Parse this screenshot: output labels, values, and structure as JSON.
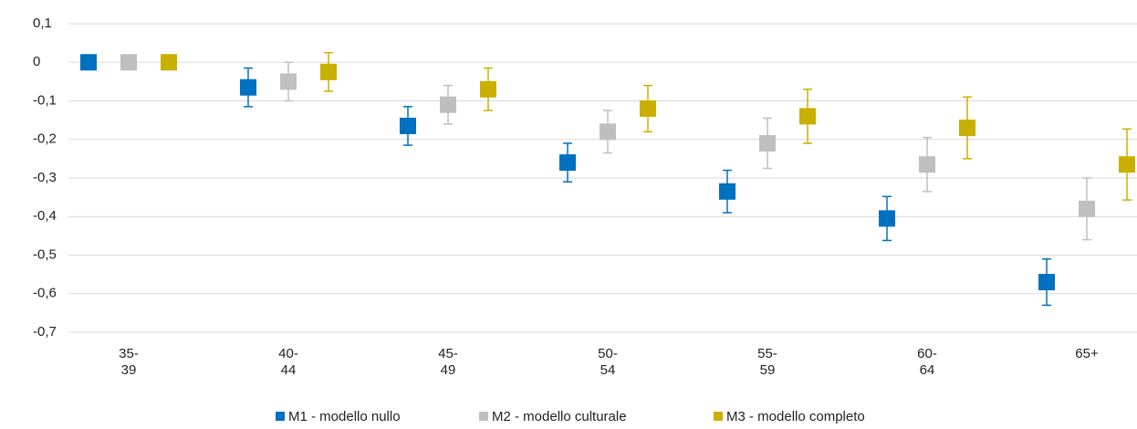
{
  "chart_data": {
    "type": "errorbar",
    "categories": [
      "35-\n39",
      "40-\n44",
      "45-\n49",
      "50-\n54",
      "55-\n59",
      "60-\n64",
      "65+"
    ],
    "series": [
      {
        "name": "M1 - modello nullo",
        "color": "#0070c0",
        "values": [
          0,
          -0.065,
          -0.165,
          -0.26,
          -0.335,
          -0.405,
          -0.57
        ],
        "errors": [
          0,
          0.05,
          0.05,
          0.05,
          0.055,
          0.057,
          0.06
        ]
      },
      {
        "name": "M2 - modello culturale",
        "color": "#bfbfbf",
        "values": [
          0,
          -0.05,
          -0.11,
          -0.18,
          -0.21,
          -0.265,
          -0.38
        ],
        "errors": [
          0,
          0.05,
          0.05,
          0.055,
          0.065,
          0.07,
          0.08
        ]
      },
      {
        "name": "M3 - modello completo",
        "color": "#c9b000",
        "values": [
          0,
          -0.025,
          -0.07,
          -0.12,
          -0.14,
          -0.17,
          -0.265
        ],
        "errors": [
          0,
          0.05,
          0.055,
          0.06,
          0.07,
          0.08,
          0.092
        ]
      }
    ],
    "ylim": [
      -0.7,
      0.1
    ],
    "yticks": [
      {
        "value": 0.1,
        "label": "0,1"
      },
      0,
      {
        "value": -0.1,
        "label": "-0,1"
      },
      {
        "value": -0.2,
        "label": "-0,2"
      },
      {
        "value": -0.3,
        "label": "-0,3"
      },
      {
        "value": -0.4,
        "label": "-0,4"
      },
      {
        "value": -0.5,
        "label": "-0,5"
      },
      {
        "value": -0.6,
        "label": "-0,6"
      },
      {
        "value": -0.7,
        "label": "-0,7"
      }
    ],
    "grid": true,
    "legend": "bottom"
  }
}
